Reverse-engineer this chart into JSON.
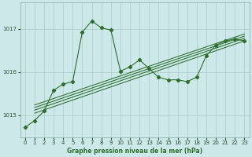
{
  "xlabel": "Graphe pression niveau de la mer (hPa)",
  "background_color": "#cce8e8",
  "grid_color": "#aacccc",
  "line_color": "#2d6e2d",
  "x_ticks": [
    0,
    1,
    2,
    3,
    4,
    5,
    6,
    7,
    8,
    9,
    10,
    11,
    12,
    13,
    14,
    15,
    16,
    17,
    18,
    19,
    20,
    21,
    22,
    23
  ],
  "ylim": [
    1014.5,
    1017.6
  ],
  "yticks": [
    1015,
    1016,
    1017
  ],
  "main_line_x": [
    0,
    1,
    2,
    3,
    4,
    5,
    6,
    7,
    8,
    9,
    10,
    11,
    12,
    13,
    14,
    15,
    16,
    17,
    18,
    19,
    20,
    21,
    22,
    23
  ],
  "main_line_y": [
    1014.72,
    1014.88,
    1015.1,
    1015.58,
    1015.72,
    1015.78,
    1016.92,
    1017.18,
    1017.02,
    1016.97,
    1016.02,
    1016.12,
    1016.28,
    1016.08,
    1015.88,
    1015.82,
    1015.82,
    1015.78,
    1015.88,
    1016.38,
    1016.62,
    1016.72,
    1016.76,
    1016.72
  ],
  "trend_lines": [
    {
      "x": [
        1,
        23
      ],
      "y": [
        1015.05,
        1016.72
      ]
    },
    {
      "x": [
        1,
        23
      ],
      "y": [
        1015.12,
        1016.78
      ]
    },
    {
      "x": [
        1,
        23
      ],
      "y": [
        1015.18,
        1016.83
      ]
    },
    {
      "x": [
        1,
        23
      ],
      "y": [
        1015.24,
        1016.88
      ]
    }
  ],
  "figsize": [
    3.2,
    2.0
  ],
  "dpi": 100
}
